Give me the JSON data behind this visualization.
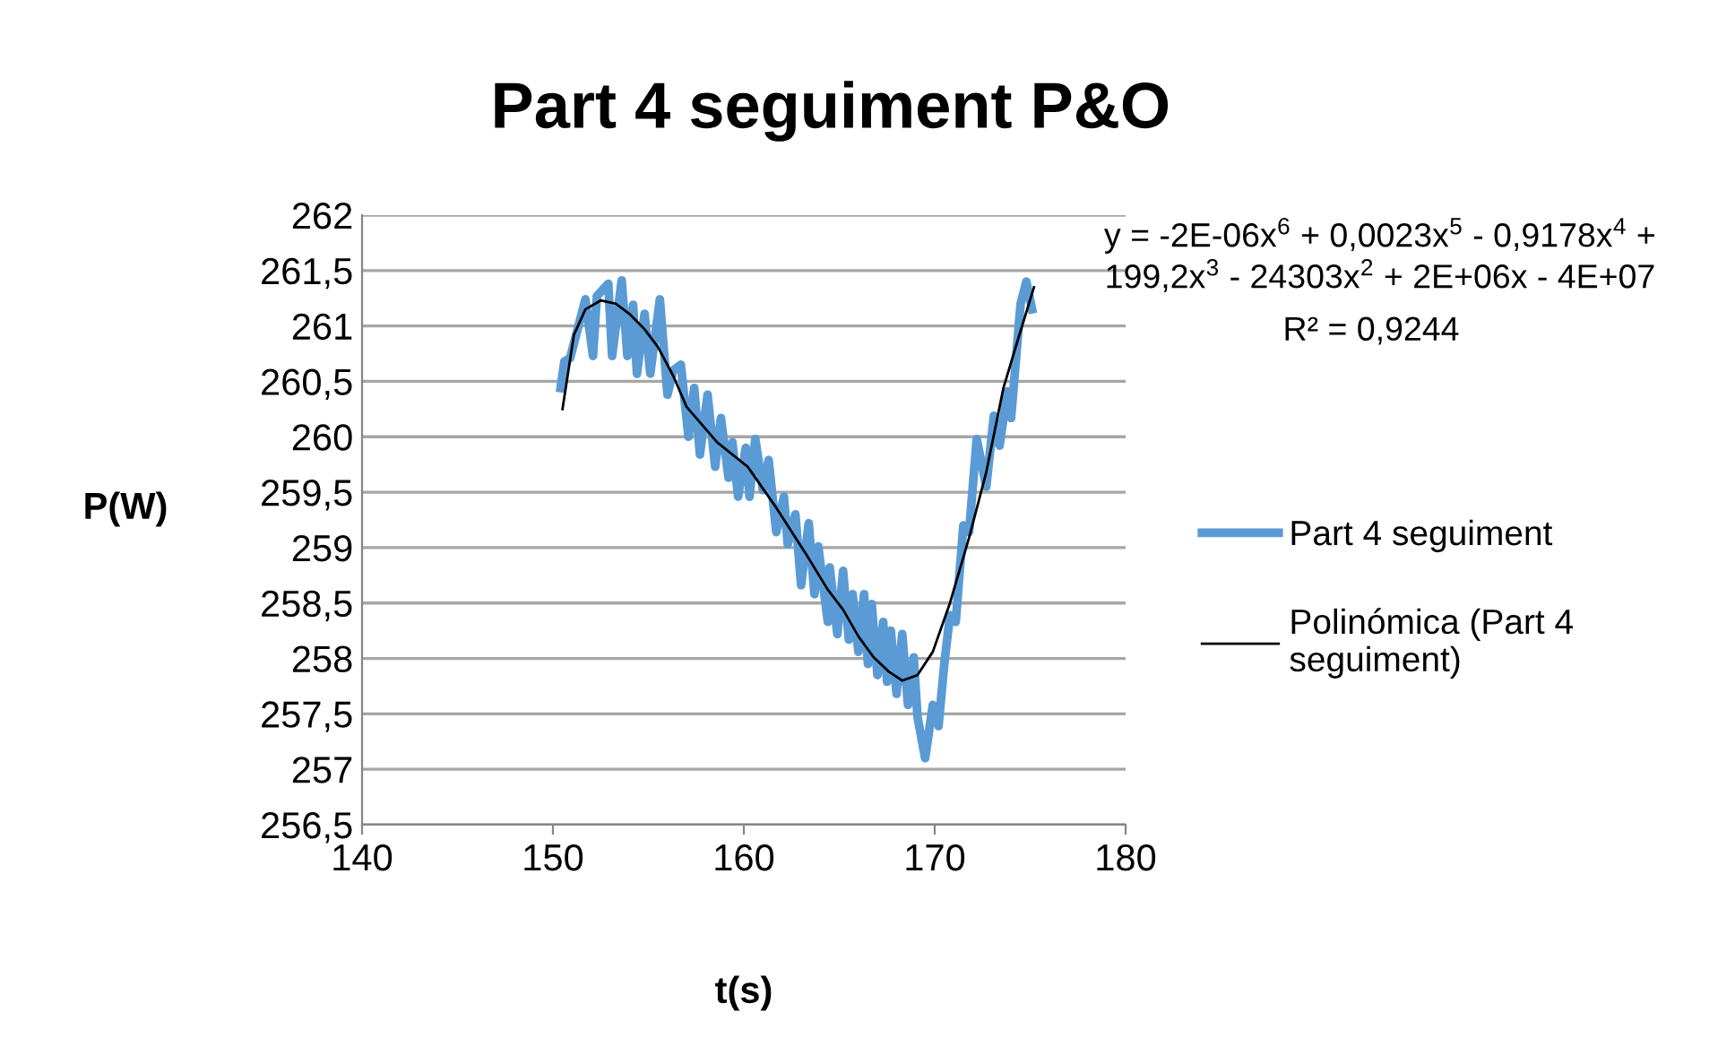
{
  "chart_data": {
    "type": "line",
    "title": "Part 4 seguiment P&O",
    "xlabel": "t(s)",
    "ylabel": "P(W)",
    "xlim": [
      140,
      180
    ],
    "xticks": [
      140,
      150,
      160,
      170,
      180
    ],
    "ylim": [
      256.5,
      262
    ],
    "yticks": [
      {
        "value": 256.5,
        "label": "256,5"
      },
      {
        "value": 257,
        "label": "257"
      },
      {
        "value": 257.5,
        "label": "257,5"
      },
      {
        "value": 258,
        "label": "258"
      },
      {
        "value": 258.5,
        "label": "258,5"
      },
      {
        "value": 259,
        "label": "259"
      },
      {
        "value": 259.5,
        "label": "259,5"
      },
      {
        "value": 260,
        "label": "260"
      },
      {
        "value": 260.5,
        "label": "260,5"
      },
      {
        "value": 261,
        "label": "261"
      },
      {
        "value": 261.5,
        "label": "261,5"
      },
      {
        "value": 262,
        "label": "262"
      }
    ],
    "grid": "y",
    "legend": "right",
    "annotations": [
      "y = -2E-06x$^{6}$ + 0,0023x$^{5}$ - 0,9178x$^{4}$ +\n199,2x$^{3}$ - 24303x$^{2}$ + 2E+06x - 4E+07",
      "R² = 0,9244"
    ],
    "series": [
      {
        "name": "Part 4 seguiment",
        "color": "#5b9bd5",
        "x": [
          150.4,
          150.6,
          150.9,
          151.7,
          152.1,
          152.3,
          152.9,
          153.1,
          153.6,
          153.9,
          154.2,
          154.4,
          154.8,
          155.1,
          155.6,
          156.0,
          156.3,
          156.7,
          157.1,
          157.4,
          157.7,
          158.1,
          158.5,
          158.8,
          159.2,
          159.4,
          159.7,
          160.1,
          160.3,
          160.6,
          161.0,
          161.3,
          161.7,
          162.1,
          162.3,
          162.7,
          163.0,
          163.4,
          163.7,
          163.9,
          164.4,
          164.5,
          164.9,
          165.2,
          165.5,
          165.7,
          166.0,
          166.3,
          166.5,
          166.7,
          167.0,
          167.3,
          167.5,
          167.7,
          168.0,
          168.3,
          168.6,
          168.9,
          169.1,
          169.5,
          169.9,
          170.2,
          170.5,
          170.8,
          171.1,
          171.5,
          171.8,
          172.2,
          172.7,
          173.1,
          173.4,
          173.8,
          174.0,
          174.5,
          174.8,
          175.1
        ],
        "values": [
          260.44,
          260.68,
          260.71,
          261.24,
          260.73,
          261.27,
          261.38,
          260.73,
          261.41,
          260.73,
          261.19,
          260.57,
          261.11,
          260.57,
          261.24,
          260.38,
          260.6,
          260.65,
          260.0,
          260.44,
          259.84,
          260.38,
          259.73,
          260.17,
          259.63,
          259.95,
          259.46,
          259.9,
          259.46,
          259.98,
          259.52,
          259.79,
          259.14,
          259.46,
          259.03,
          259.3,
          258.66,
          259.22,
          258.58,
          259.01,
          258.33,
          258.82,
          258.22,
          258.79,
          258.17,
          258.58,
          258.06,
          258.58,
          257.95,
          258.49,
          257.85,
          258.33,
          257.79,
          258.25,
          257.68,
          258.22,
          257.58,
          258.01,
          257.47,
          257.1,
          257.58,
          257.39,
          257.95,
          258.39,
          258.33,
          259.2,
          259.14,
          259.98,
          259.55,
          260.19,
          259.92,
          260.41,
          260.17,
          261.2,
          261.4,
          261.15
        ]
      },
      {
        "name": "Polinómica (Part 4\nseguiment)",
        "color": "#000000",
        "x": [
          150.5,
          151.1,
          151.7,
          152.5,
          153.3,
          154.0,
          154.8,
          155.5,
          156.3,
          157.0,
          158.6,
          160.2,
          161.7,
          163.3,
          164.4,
          165.2,
          166.0,
          166.8,
          167.6,
          168.3,
          169.1,
          169.9,
          170.8,
          171.8,
          172.7,
          173.6,
          174.4,
          175.2
        ],
        "values": [
          260.25,
          260.92,
          261.15,
          261.23,
          261.2,
          261.11,
          260.97,
          260.81,
          260.55,
          260.27,
          259.95,
          259.73,
          259.36,
          258.93,
          258.62,
          258.44,
          258.2,
          258.01,
          257.88,
          257.8,
          257.85,
          258.06,
          258.5,
          259.09,
          259.68,
          260.44,
          260.9,
          261.35
        ]
      }
    ]
  }
}
